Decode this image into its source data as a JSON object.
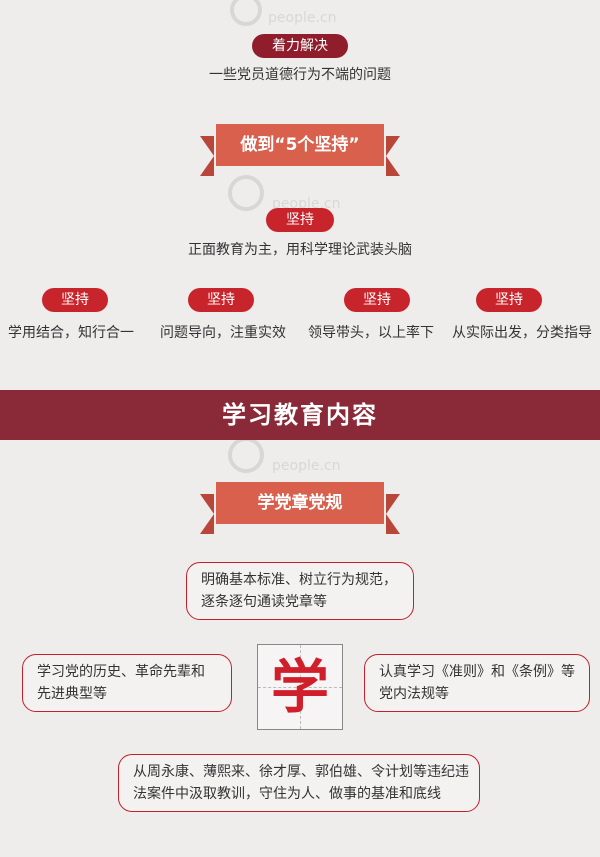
{
  "top": {
    "badge": "着力解决",
    "text": "一些党员道德行为不端的问题"
  },
  "section1": {
    "ribbon": "做到“5个坚持”",
    "center": {
      "badge": "坚持",
      "text": "正面教育为主，用科学理论武装头脑"
    },
    "items": [
      {
        "badge": "坚持",
        "text": "学用结合，知行合一"
      },
      {
        "badge": "坚持",
        "text": "问题导向，注重实效"
      },
      {
        "badge": "坚持",
        "text": "领导带头，以上率下"
      },
      {
        "badge": "坚持",
        "text": "从实际出发，分类指导"
      }
    ]
  },
  "banner": {
    "title": "学习教育内容"
  },
  "section2": {
    "ribbon": "学党章党规",
    "center_char": "学",
    "boxes": {
      "top": [
        "明确基本标准、树立行为规范，",
        "逐条逐句通读党章等"
      ],
      "left": [
        "学习党的历史、革命先辈和",
        "先进典型等"
      ],
      "right": [
        "认真学习《准则》和《条例》等",
        "党内法规等"
      ],
      "bottom": [
        "从周永康、薄熙来、徐才厚、郭伯雄、令计划等违纪违",
        "法案件中汲取教训，守住为人、做事的基准和底线"
      ]
    }
  },
  "watermark": {
    "text": "people.cn"
  },
  "colors": {
    "background": "#efecec",
    "dark_red": "#8f1d2c",
    "red": "#c8242b",
    "ribbon": "#d8604c",
    "banner": "#8a2a38"
  }
}
